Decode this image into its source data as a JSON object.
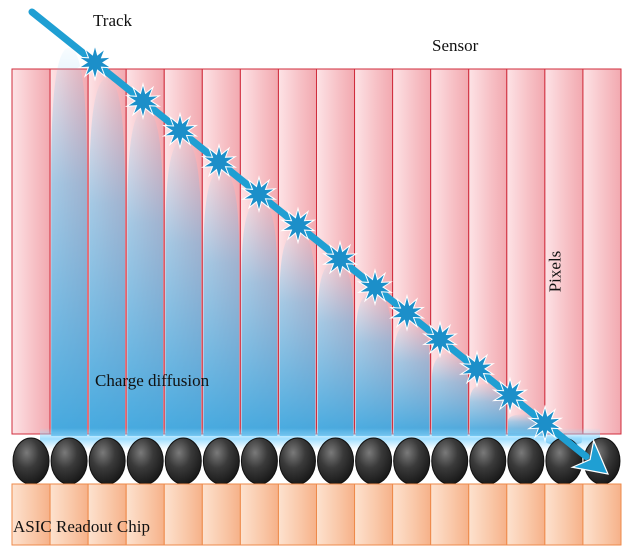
{
  "labels": {
    "track": "Track",
    "sensor": "Sensor",
    "pixels": "Pixels",
    "charge_diffusion": "Charge diffusion",
    "asic": "ASIC Readout Chip"
  },
  "sensor": {
    "pixel_count": 16,
    "fill_light": "#fde3e6",
    "fill_dark": "#f2a9b0",
    "stroke": "#d02c3c"
  },
  "bump_bonds": {
    "count": 16,
    "color": "#3a3a3a"
  },
  "asic": {
    "cell_count": 16,
    "fill_light": "#fde2cf",
    "fill_dark": "#f6b189",
    "stroke": "#ee8a4a"
  },
  "track": {
    "color": "#1f9fd3",
    "star_color": "#1c8fc9"
  },
  "diffusion": {
    "color": "#5db7e6"
  }
}
